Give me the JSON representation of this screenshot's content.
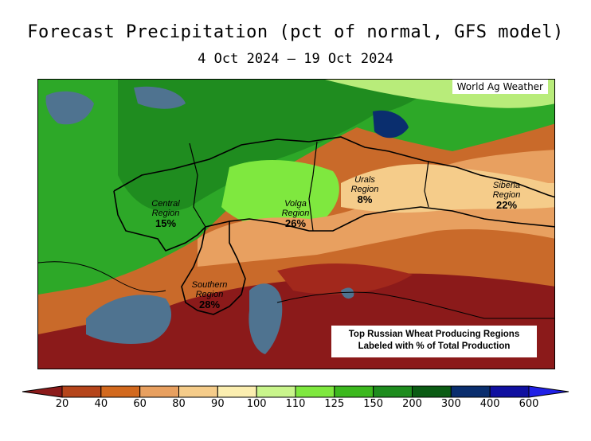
{
  "header": {
    "title": "Forecast Precipitation (pct of normal, GFS model)",
    "date_range": "4 Oct 2024 — 19 Oct 2024"
  },
  "map": {
    "credit": "World Ag Weather",
    "note_line1": "Top Russian Wheat Producing Regions",
    "note_line2": "Labeled with % of Total Production",
    "regions": [
      {
        "name_line1": "Central",
        "name_line2": "Region",
        "percent": "15%"
      },
      {
        "name_line1": "Volga",
        "name_line2": "Region",
        "percent": "26%"
      },
      {
        "name_line1": "Urals",
        "name_line2": "Region",
        "percent": "8%"
      },
      {
        "name_line1": "Siberia",
        "name_line2": "Region",
        "percent": "22%"
      },
      {
        "name_line1": "Southern",
        "name_line2": "Region",
        "percent": "28%"
      }
    ]
  },
  "legend": {
    "ticks": [
      "20",
      "40",
      "60",
      "80",
      "90",
      "100",
      "110",
      "125",
      "150",
      "200",
      "300",
      "400",
      "600"
    ],
    "colors": [
      "#8b1a1a",
      "#b5451b",
      "#d2691e",
      "#e8a060",
      "#f5cc8a",
      "#fbeeb0",
      "#c9f58c",
      "#7fe83f",
      "#3cb81e",
      "#1e8c1e",
      "#0b5c14",
      "#0a2e6e",
      "#1010a0",
      "#2020e6"
    ]
  }
}
